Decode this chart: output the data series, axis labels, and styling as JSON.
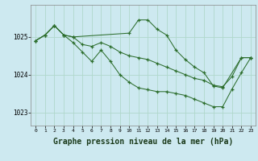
{
  "bg_color": "#cde9f0",
  "grid_color": "#b0d8cc",
  "line_color": "#2d6e2d",
  "xlabel": "Graphe pression niveau de la mer (hPa)",
  "xlabel_fontsize": 7,
  "yticks": [
    1023,
    1024,
    1025
  ],
  "xticks": [
    0,
    1,
    2,
    3,
    4,
    5,
    6,
    7,
    8,
    9,
    10,
    11,
    12,
    13,
    14,
    15,
    16,
    17,
    18,
    19,
    20,
    21,
    22,
    23
  ],
  "xlim": [
    -0.5,
    23.5
  ],
  "ylim": [
    1022.65,
    1025.85
  ],
  "series": [
    {
      "x": [
        0,
        1,
        2,
        3,
        4,
        10,
        11,
        12,
        13,
        14,
        15,
        16,
        17,
        18,
        19,
        20,
        22,
        23
      ],
      "y": [
        1024.9,
        1025.05,
        1025.3,
        1025.05,
        1025.0,
        1025.1,
        1025.45,
        1025.45,
        1025.2,
        1025.05,
        1024.65,
        1024.4,
        1024.2,
        1024.05,
        1023.7,
        1023.65,
        1024.45,
        1024.45
      ]
    },
    {
      "x": [
        0,
        1,
        2,
        3,
        4,
        5,
        6,
        7,
        8,
        9,
        10,
        11,
        12,
        13,
        14,
        15,
        16,
        17,
        18,
        19,
        20,
        21,
        22,
        23
      ],
      "y": [
        1024.9,
        1025.05,
        1025.3,
        1025.05,
        1025.0,
        1024.8,
        1024.75,
        1024.85,
        1024.75,
        1024.6,
        1024.5,
        1024.45,
        1024.4,
        1024.3,
        1024.2,
        1024.1,
        1024.0,
        1023.9,
        1023.85,
        1023.72,
        1023.68,
        1023.95,
        1024.45,
        1024.45
      ]
    },
    {
      "x": [
        0,
        1,
        2,
        3,
        4,
        5,
        6,
        7,
        8,
        9,
        10,
        11,
        12,
        13,
        14,
        15,
        16,
        17,
        18,
        19,
        20,
        21,
        22,
        23
      ],
      "y": [
        1024.9,
        1025.05,
        1025.3,
        1025.05,
        1024.85,
        1024.6,
        1024.35,
        1024.65,
        1024.35,
        1024.0,
        1023.8,
        1023.65,
        1023.6,
        1023.55,
        1023.55,
        1023.5,
        1023.45,
        1023.35,
        1023.25,
        1023.15,
        1023.15,
        1023.62,
        1024.05,
        1024.45
      ]
    }
  ]
}
